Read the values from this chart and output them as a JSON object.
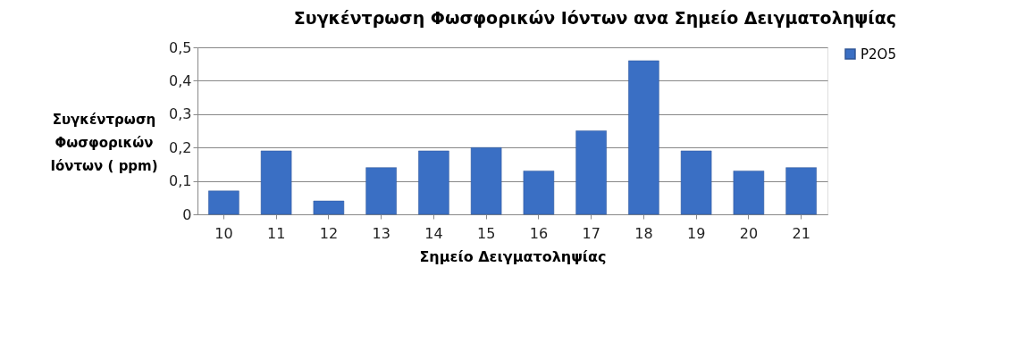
{
  "chart_data": {
    "type": "bar",
    "title": "Συγκέντρωση Φωσφορικών Ιόντων ανα Σημείο Δειγματοληψίας",
    "xlabel": "Σημείο Δειγματοληψίας",
    "ylabel": "Συγκέντρωση Φωσφορικών Ιόντων ( ppm)",
    "categories": [
      "10",
      "11",
      "12",
      "13",
      "14",
      "15",
      "16",
      "17",
      "18",
      "19",
      "20",
      "21"
    ],
    "series": [
      {
        "name": "P2O5",
        "color": "#3a6fc4",
        "values": [
          0.07,
          0.19,
          0.04,
          0.14,
          0.19,
          0.2,
          0.13,
          0.25,
          0.46,
          0.19,
          0.13,
          0.14
        ]
      }
    ],
    "ylim": [
      0,
      0.5
    ],
    "yticks": [
      0,
      {
        "value": 0.1,
        "label": "0,1"
      },
      {
        "value": 0.2,
        "label": "0,2"
      },
      {
        "value": 0.3,
        "label": "0,3"
      },
      {
        "value": 0.4,
        "label": "0,4"
      },
      {
        "value": 0.5,
        "label": "0,5"
      }
    ],
    "grid": "y",
    "legend": "right"
  }
}
